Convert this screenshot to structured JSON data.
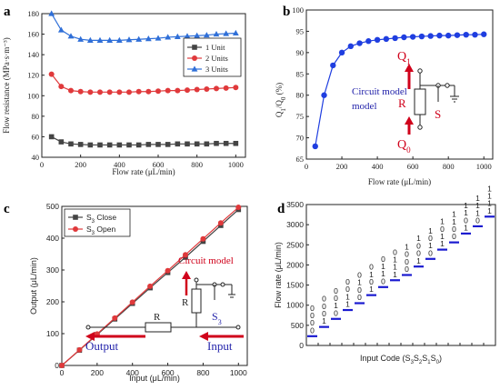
{
  "panels": {
    "a": "a",
    "b": "b",
    "c": "c",
    "d": "d"
  },
  "colors": {
    "black": "#444444",
    "red": "#e0393b",
    "blue": "#2f6fd8",
    "dotblue": "#1f3ee0",
    "dark_red": "#d0021b",
    "navy": "#2222aa",
    "bar_blue": "#1a1ad0"
  },
  "chart_data": [
    {
      "type": "line",
      "id": "a",
      "xlabel": "Flow rate (μL/min)",
      "ylabel": "Flow resistance (MPa·s·m⁻³)",
      "xlim": [
        0,
        1050
      ],
      "ylim": [
        40,
        180
      ],
      "xticks": [
        "0",
        "200",
        "400",
        "600",
        "800",
        "1000"
      ],
      "yticks": [
        "40",
        "60",
        "80",
        "100",
        "120",
        "140",
        "160",
        "180"
      ],
      "legend_position": "right",
      "series": [
        {
          "name": "1 Unit",
          "color": "#444444",
          "marker": "square",
          "x": [
            50,
            100,
            150,
            200,
            250,
            300,
            350,
            400,
            450,
            500,
            550,
            600,
            650,
            700,
            750,
            800,
            850,
            900,
            950,
            1000
          ],
          "values": [
            60,
            55,
            53,
            52.5,
            52,
            52,
            52,
            52,
            52,
            52,
            52.5,
            52.5,
            52.5,
            53,
            53,
            53,
            53,
            53.5,
            53.5,
            53.5
          ]
        },
        {
          "name": "2 Units",
          "color": "#e0393b",
          "marker": "circle",
          "x": [
            50,
            100,
            150,
            200,
            250,
            300,
            350,
            400,
            450,
            500,
            550,
            600,
            650,
            700,
            750,
            800,
            850,
            900,
            950,
            1000
          ],
          "values": [
            121,
            109,
            105,
            104,
            103.5,
            103.5,
            103.5,
            103.5,
            103.5,
            104,
            104,
            104.5,
            105,
            105,
            105.5,
            106,
            106.5,
            107,
            107.5,
            108
          ]
        },
        {
          "name": "3 Units",
          "color": "#2f6fd8",
          "marker": "triangle",
          "x": [
            50,
            100,
            150,
            200,
            250,
            300,
            350,
            400,
            450,
            500,
            550,
            600,
            650,
            700,
            750,
            800,
            850,
            900,
            950,
            1000
          ],
          "values": [
            180,
            164,
            158,
            155,
            154,
            154,
            154,
            154,
            154.5,
            155,
            155.5,
            156,
            157,
            157.5,
            158,
            158.5,
            159,
            160,
            160.5,
            161
          ]
        }
      ]
    },
    {
      "type": "line",
      "id": "b",
      "xlabel": "Flow rate (μL/min)",
      "ylabel": "Q1/Q0 (%)",
      "xlim": [
        0,
        1050
      ],
      "ylim": [
        65,
        100
      ],
      "xticks": [
        "0",
        "200",
        "400",
        "600",
        "800",
        "1000"
      ],
      "yticks": [
        "65",
        "70",
        "75",
        "80",
        "85",
        "90",
        "95",
        "100"
      ],
      "series": [
        {
          "color": "#1f3ee0",
          "marker": "circle",
          "x": [
            50,
            100,
            150,
            200,
            250,
            300,
            350,
            400,
            450,
            500,
            550,
            600,
            650,
            700,
            750,
            800,
            850,
            900,
            950,
            1000
          ],
          "values": [
            68,
            80,
            87,
            90,
            91.5,
            92.2,
            92.7,
            93,
            93.2,
            93.4,
            93.6,
            93.7,
            93.8,
            93.9,
            94,
            94,
            94.1,
            94.2,
            94.2,
            94.3
          ]
        }
      ],
      "annotations": {
        "circuit_model": "Circuit model",
        "q1": "Q",
        "q1_sub": "1",
        "q0": "Q",
        "q0_sub": "0",
        "r": "R",
        "s": "S"
      }
    },
    {
      "type": "line",
      "id": "c",
      "xlabel": "Input (μL/min)",
      "ylabel": "Output (μL/min)",
      "xlim": [
        0,
        1050
      ],
      "ylim": [
        0,
        500
      ],
      "xticks": [
        "0",
        "200",
        "400",
        "600",
        "800",
        "1000"
      ],
      "yticks": [
        "0",
        "100",
        "200",
        "300",
        "400",
        "500"
      ],
      "legend_position": "top-left",
      "series": [
        {
          "name": "S3 Close",
          "color": "#444444",
          "marker": "square",
          "x": [
            0,
            100,
            200,
            300,
            400,
            500,
            600,
            700,
            800,
            900,
            1000
          ],
          "values": [
            0,
            48,
            97,
            146,
            195,
            244,
            292,
            340,
            390,
            440,
            490
          ]
        },
        {
          "name": "S3 Open",
          "color": "#e0393b",
          "marker": "circle",
          "x": [
            0,
            100,
            200,
            300,
            400,
            500,
            600,
            700,
            800,
            900,
            1000
          ],
          "values": [
            0,
            49,
            99,
            149,
            199,
            249,
            298,
            348,
            398,
            448,
            497
          ]
        }
      ],
      "annotations": {
        "circuit_model": "Circuit model",
        "r_top": "R",
        "r_bottom": "R",
        "s3": "S",
        "s3_sub": "3",
        "output": "Output",
        "input": "Input"
      }
    },
    {
      "type": "bar",
      "id": "d",
      "xlabel": "Input Code (S3S2S1S0)",
      "ylabel": "Flow rate (μL/min)",
      "ylim": [
        0,
        3500
      ],
      "yticks": [
        "0",
        "500",
        "1000",
        "1500",
        "2000",
        "2500",
        "3000",
        "3500"
      ],
      "categories": [
        "0000",
        "0001",
        "0010",
        "0011",
        "0100",
        "0101",
        "0110",
        "0111",
        "1000",
        "1001",
        "1010",
        "1011",
        "1100",
        "1101",
        "1110",
        "1111"
      ],
      "values": [
        230,
        460,
        660,
        880,
        1050,
        1250,
        1450,
        1620,
        1750,
        1960,
        2150,
        2380,
        2560,
        2780,
        2960,
        3200
      ]
    }
  ]
}
